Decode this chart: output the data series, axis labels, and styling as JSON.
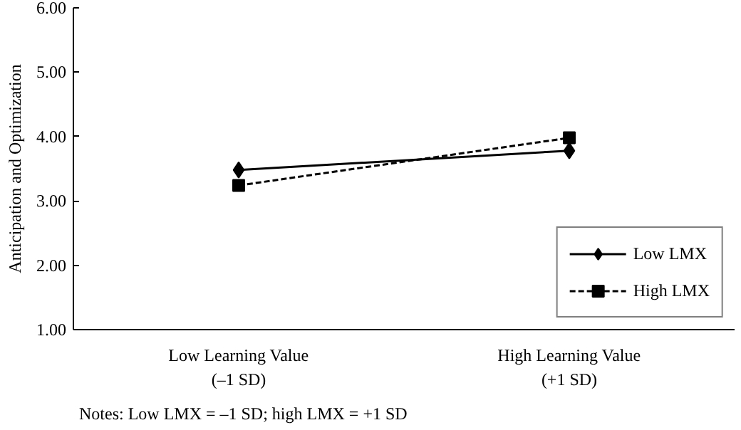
{
  "chart_data": {
    "type": "line",
    "ylabel": "Anticipation and Optimization",
    "categories": [
      "Low Learning Value\n(–1 SD)",
      "High Learning Value\n(+1 SD)"
    ],
    "series": [
      {
        "name": "Low LMX",
        "color": "#000000",
        "values": [
          3.48,
          3.78
        ],
        "marker": "diamond",
        "line_style": "solid"
      },
      {
        "name": "High LMX",
        "color": "#000000",
        "values": [
          3.24,
          3.98
        ],
        "marker": "square",
        "line_style": "dashed"
      }
    ],
    "ylim": [
      1,
      6
    ],
    "yticks": [
      {
        "value": 1,
        "label": "1.00"
      },
      {
        "value": 2,
        "label": "2.00"
      },
      {
        "value": 3,
        "label": "3.00"
      },
      {
        "value": 4,
        "label": "4.00"
      },
      {
        "value": 5,
        "label": "5.00"
      },
      {
        "value": 6,
        "label": "6.00"
      }
    ],
    "grid": false,
    "legend": "bottom right",
    "annotations": [
      "Notes: Low LMX = –1 SD; high LMX = +1 SD"
    ]
  }
}
